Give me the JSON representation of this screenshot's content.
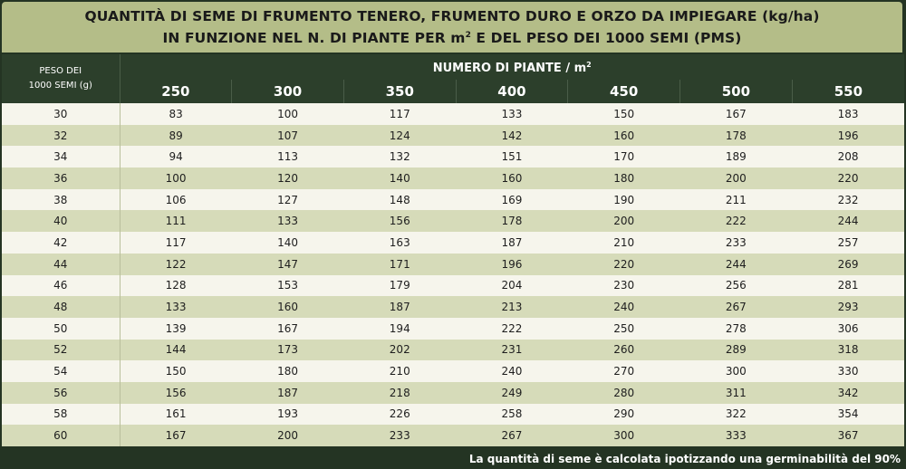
{
  "title": {
    "line1": "QUANTITÀ DI SEME DI FRUMENTO TENERO, FRUMENTO DURO E ORZO DA IMPIEGARE (kg/ha)",
    "line2_pre": "IN FUNZIONE NEL N. DI PIANTE PER m",
    "line2_sup": "2",
    "line2_post": " E DEL PESO DEI 1000 SEMI (PMS)"
  },
  "table": {
    "row_header_line1": "PESO DEI",
    "row_header_line2": "1000 SEMI (g)",
    "col_group_label": "NUMERO DI PIANTE / m",
    "col_group_sup": "2",
    "columns": [
      "250",
      "300",
      "350",
      "400",
      "450",
      "500",
      "550"
    ],
    "rows": [
      {
        "peso": "30",
        "values": [
          "83",
          "100",
          "117",
          "133",
          "150",
          "167",
          "183"
        ]
      },
      {
        "peso": "32",
        "values": [
          "89",
          "107",
          "124",
          "142",
          "160",
          "178",
          "196"
        ]
      },
      {
        "peso": "34",
        "values": [
          "94",
          "113",
          "132",
          "151",
          "170",
          "189",
          "208"
        ]
      },
      {
        "peso": "36",
        "values": [
          "100",
          "120",
          "140",
          "160",
          "180",
          "200",
          "220"
        ]
      },
      {
        "peso": "38",
        "values": [
          "106",
          "127",
          "148",
          "169",
          "190",
          "211",
          "232"
        ]
      },
      {
        "peso": "40",
        "values": [
          "111",
          "133",
          "156",
          "178",
          "200",
          "222",
          "244"
        ]
      },
      {
        "peso": "42",
        "values": [
          "117",
          "140",
          "163",
          "187",
          "210",
          "233",
          "257"
        ]
      },
      {
        "peso": "44",
        "values": [
          "122",
          "147",
          "171",
          "196",
          "220",
          "244",
          "269"
        ]
      },
      {
        "peso": "46",
        "values": [
          "128",
          "153",
          "179",
          "204",
          "230",
          "256",
          "281"
        ]
      },
      {
        "peso": "48",
        "values": [
          "133",
          "160",
          "187",
          "213",
          "240",
          "267",
          "293"
        ]
      },
      {
        "peso": "50",
        "values": [
          "139",
          "167",
          "194",
          "222",
          "250",
          "278",
          "306"
        ]
      },
      {
        "peso": "52",
        "values": [
          "144",
          "173",
          "202",
          "231",
          "260",
          "289",
          "318"
        ]
      },
      {
        "peso": "54",
        "values": [
          "150",
          "180",
          "210",
          "240",
          "270",
          "300",
          "330"
        ]
      },
      {
        "peso": "56",
        "values": [
          "156",
          "187",
          "218",
          "249",
          "280",
          "311",
          "342"
        ]
      },
      {
        "peso": "58",
        "values": [
          "161",
          "193",
          "226",
          "258",
          "290",
          "322",
          "354"
        ]
      },
      {
        "peso": "60",
        "values": [
          "167",
          "200",
          "233",
          "267",
          "300",
          "333",
          "367"
        ]
      }
    ]
  },
  "footnote": "La quantità di seme è calcolata ipotizzando una germinabilità del 90%",
  "colors": {
    "title_bg": "#b4bd88",
    "header_bg": "#2c3f2b",
    "row_light": "#f6f5ec",
    "row_dark": "#d6dbb9",
    "frame_bg": "#243423"
  }
}
